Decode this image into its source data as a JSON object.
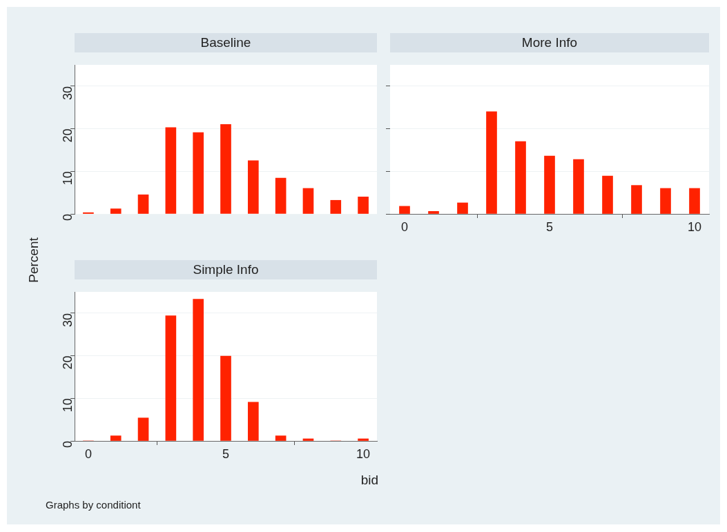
{
  "chart_data": [
    {
      "type": "bar",
      "title": "Baseline",
      "ylabel": "Percent",
      "x": [
        0,
        1,
        2,
        3,
        4,
        5,
        6,
        7,
        8,
        9,
        10
      ],
      "values": [
        0.3,
        1.2,
        4.5,
        20.3,
        19.1,
        21.0,
        12.5,
        8.4,
        6.0,
        3.2,
        4.0
      ],
      "color": "#ff2200",
      "xlim": [
        -0.5,
        10.5
      ],
      "xticks": [
        0,
        5,
        10
      ],
      "ylim": [
        0,
        35
      ],
      "yticks": [
        0,
        10,
        20,
        30
      ],
      "grid": "y",
      "tick_labels": "y"
    },
    {
      "type": "bar",
      "title": "More Info",
      "x": [
        0,
        1,
        2,
        3,
        4,
        5,
        6,
        7,
        8,
        9,
        10
      ],
      "values": [
        1.8,
        0.6,
        2.6,
        24.0,
        17.0,
        13.6,
        12.8,
        8.9,
        6.7,
        6.0,
        6.0
      ],
      "color": "#ff2200",
      "xlim": [
        -0.5,
        10.5
      ],
      "xticks": [
        0,
        5,
        10
      ],
      "ylim": [
        0,
        35
      ],
      "yticks": [
        0,
        10,
        20,
        30
      ],
      "grid": "y",
      "tick_labels": "x"
    },
    {
      "type": "bar",
      "title": "Simple Info",
      "xlabel": "bid",
      "annotations": [
        "Graphs by conditiont"
      ],
      "x": [
        0,
        1,
        2,
        3,
        4,
        5,
        6,
        7,
        8,
        9,
        10
      ],
      "values": [
        0,
        1.2,
        5.4,
        29.4,
        33.3,
        19.9,
        9.1,
        1.2,
        0.5,
        0,
        0.5
      ],
      "color": "#ff2200",
      "xlim": [
        -0.5,
        10.5
      ],
      "xticks": [
        0,
        5,
        10
      ],
      "ylim": [
        0,
        35
      ],
      "yticks": [
        0,
        10,
        20,
        30
      ],
      "grid": "y"
    }
  ]
}
